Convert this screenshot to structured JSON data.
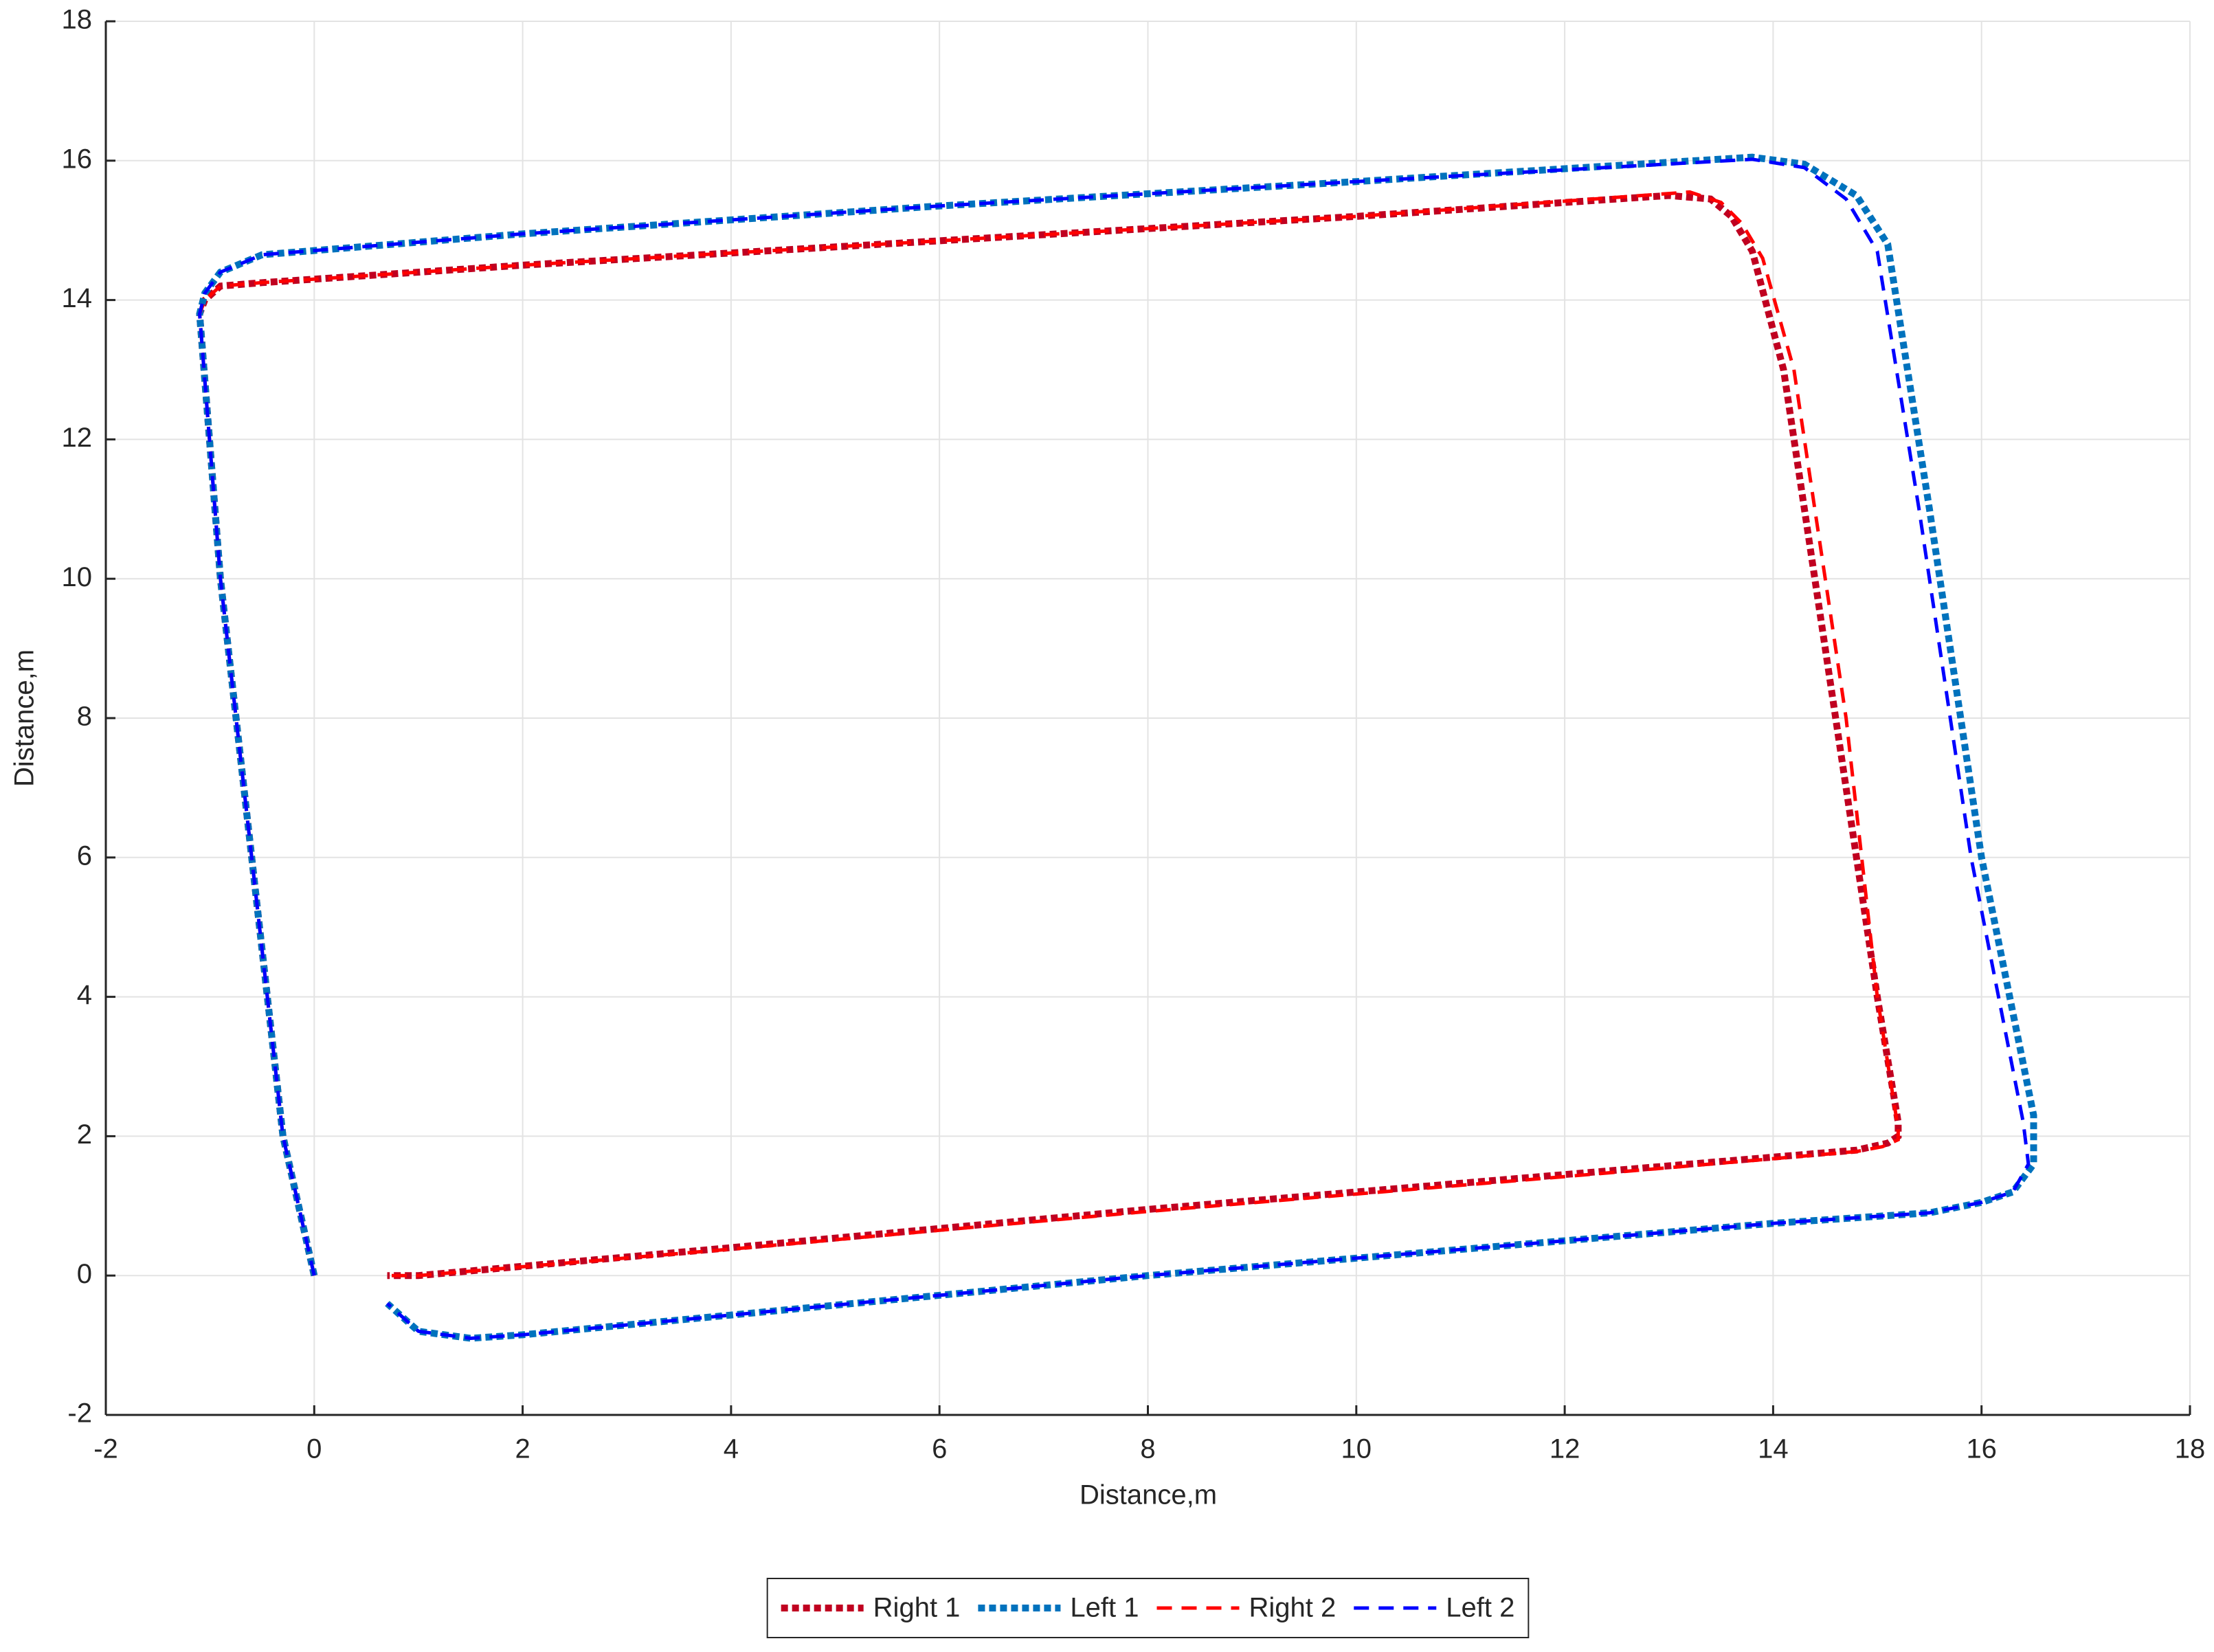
{
  "chart_data": {
    "type": "line",
    "xlabel": "Distance,m",
    "ylabel": "Distance,m",
    "xlim": [
      -2,
      18
    ],
    "ylim": [
      -2,
      18
    ],
    "xticks": [
      -2,
      0,
      2,
      4,
      6,
      8,
      10,
      12,
      14,
      16,
      18
    ],
    "yticks": [
      -2,
      0,
      2,
      4,
      6,
      8,
      10,
      12,
      14,
      16,
      18
    ],
    "grid": true,
    "legend": "bottom",
    "series": [
      {
        "name": "Right 1",
        "color": "#c00020",
        "style": "dotted",
        "x": [
          0,
          -0.3,
          -0.6,
          -0.9,
          -1.1,
          -1.05,
          -0.9,
          -0.5,
          2,
          6,
          10,
          13,
          13.4,
          13.6,
          13.8,
          14.1,
          14.6,
          15.0,
          15.2,
          15.2,
          15.1,
          14.8,
          12,
          8,
          4,
          1,
          0.7
        ],
        "values": [
          0,
          2,
          6,
          10,
          13.8,
          14.0,
          14.2,
          14.25,
          14.5,
          14.85,
          15.2,
          15.5,
          15.45,
          15.2,
          14.7,
          13,
          8,
          4,
          2.2,
          2.0,
          1.9,
          1.8,
          1.45,
          0.95,
          0.4,
          0.0,
          0.0
        ]
      },
      {
        "name": "Left 1",
        "color": "#0072bd",
        "style": "dotted",
        "x": [
          0,
          -0.3,
          -0.6,
          -0.9,
          -1.1,
          -1.05,
          -0.9,
          -0.5,
          2,
          6,
          10,
          13.8,
          14.3,
          14.8,
          15.1,
          15.5,
          16.0,
          16.5,
          16.5,
          16.3,
          16.0,
          15.5,
          14.0,
          8,
          2,
          1.5,
          1.0,
          0.7
        ],
        "values": [
          0,
          2,
          6,
          10,
          13.8,
          14.1,
          14.4,
          14.65,
          14.95,
          15.35,
          15.7,
          16.05,
          15.95,
          15.5,
          14.8,
          11,
          6,
          2.3,
          1.6,
          1.2,
          1.05,
          0.9,
          0.75,
          0.0,
          -0.85,
          -0.9,
          -0.8,
          -0.4
        ]
      },
      {
        "name": "Right 2",
        "color": "#ff0000",
        "style": "dashed",
        "x": [
          0,
          -0.3,
          -0.6,
          -0.9,
          -1.1,
          -1.05,
          -0.9,
          -0.5,
          2,
          6,
          10,
          13.2,
          13.5,
          13.7,
          13.9,
          14.2,
          14.7,
          15.0,
          15.2,
          15.2,
          15.05,
          14.8,
          12,
          8,
          4,
          1,
          0.7
        ],
        "values": [
          0,
          2,
          6,
          10,
          13.8,
          14.0,
          14.2,
          14.25,
          14.5,
          14.85,
          15.2,
          15.55,
          15.4,
          15.1,
          14.6,
          13,
          8,
          4,
          2.1,
          1.95,
          1.85,
          1.78,
          1.42,
          0.92,
          0.38,
          0.0,
          0.0
        ]
      },
      {
        "name": "Left 2",
        "color": "#0000ff",
        "style": "dashed",
        "x": [
          0,
          -0.3,
          -0.6,
          -0.9,
          -1.1,
          -1.05,
          -0.9,
          -0.5,
          2,
          6,
          10,
          13.8,
          14.3,
          14.7,
          15.0,
          15.4,
          15.9,
          16.4,
          16.45,
          16.3,
          16.0,
          15.5,
          14.0,
          8,
          2,
          1.5,
          1.0,
          0.7
        ],
        "values": [
          0,
          2,
          6,
          10,
          13.8,
          14.1,
          14.4,
          14.65,
          14.95,
          15.35,
          15.7,
          16.02,
          15.9,
          15.45,
          14.7,
          11,
          6,
          2.2,
          1.6,
          1.2,
          1.05,
          0.9,
          0.75,
          0.0,
          -0.85,
          -0.9,
          -0.8,
          -0.4
        ]
      }
    ]
  }
}
